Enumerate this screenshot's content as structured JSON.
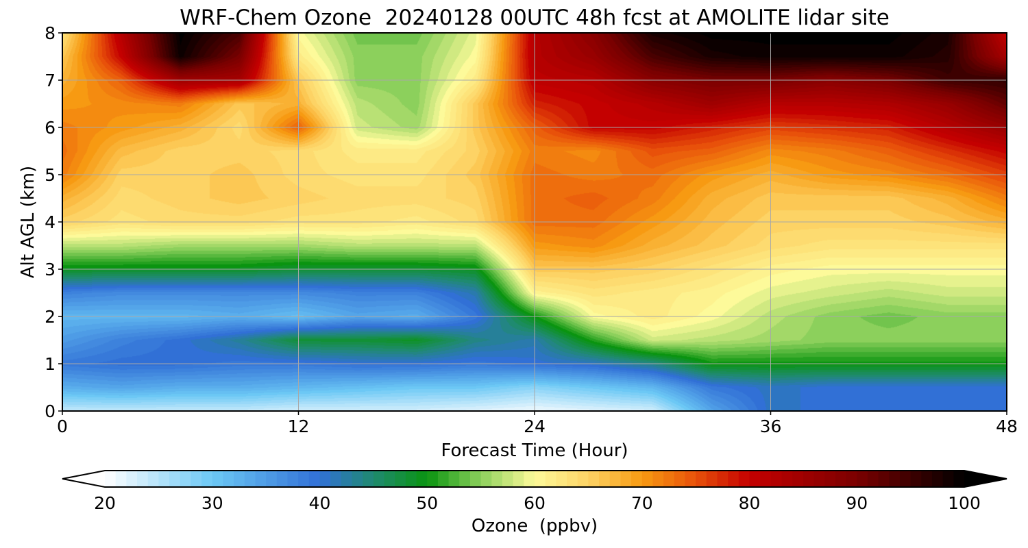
{
  "chart_data": {
    "type": "heatmap",
    "title": "WRF-Chem Ozone  20240128 00UTC 48h fcst at AMOLITE lidar site",
    "xlabel": "Forecast Time (Hour)",
    "ylabel": "Alt AGL (km)",
    "xlim": [
      0,
      48
    ],
    "ylim": [
      0,
      8
    ],
    "xticks": [
      0,
      12,
      24,
      36,
      48
    ],
    "yticks": [
      0,
      1,
      2,
      3,
      4,
      5,
      6,
      7,
      8
    ],
    "grid": true,
    "colorbar": {
      "label": "Ozone  (ppbv)",
      "orientation": "horizontal",
      "position": "bottom",
      "range": [
        20,
        100
      ],
      "ticks": [
        20,
        30,
        40,
        50,
        60,
        70,
        80,
        90,
        100
      ],
      "extend": "both",
      "colors": [
        {
          "v": 20,
          "c": "#ffffff"
        },
        {
          "v": 30,
          "c": "#6cc8f5"
        },
        {
          "v": 40,
          "c": "#3170d6"
        },
        {
          "v": 45,
          "c": "#1f8a70"
        },
        {
          "v": 50,
          "c": "#0a9410"
        },
        {
          "v": 55,
          "c": "#8cd05c"
        },
        {
          "v": 60,
          "c": "#fdfa9a"
        },
        {
          "v": 65,
          "c": "#fdd365"
        },
        {
          "v": 70,
          "c": "#f79a12"
        },
        {
          "v": 75,
          "c": "#e8510a"
        },
        {
          "v": 80,
          "c": "#c40000"
        },
        {
          "v": 90,
          "c": "#7a0000"
        },
        {
          "v": 100,
          "c": "#000000"
        }
      ]
    },
    "x": [
      0,
      3,
      6,
      9,
      12,
      15,
      18,
      21,
      24,
      27,
      30,
      33,
      36,
      39,
      42,
      45,
      48
    ],
    "y": [
      0,
      0.5,
      1,
      1.5,
      2,
      2.5,
      3,
      3.5,
      4,
      4.5,
      5,
      5.5,
      6,
      6.5,
      7,
      7.5,
      8
    ],
    "z": [
      [
        24,
        24,
        24,
        24,
        23,
        23,
        23,
        22,
        21,
        22,
        23,
        34,
        41,
        40,
        40,
        40,
        40
      ],
      [
        33,
        34,
        33,
        33,
        32,
        31,
        30,
        30,
        28,
        30,
        32,
        39,
        41,
        40,
        40,
        40,
        40
      ],
      [
        39,
        40,
        40,
        39,
        39,
        40,
        40,
        39,
        40,
        41,
        44,
        50,
        50,
        50,
        50,
        50,
        50
      ],
      [
        35,
        38,
        40,
        43,
        48,
        48,
        49,
        44,
        42,
        51,
        58,
        57,
        56,
        55,
        55,
        55,
        55
      ],
      [
        32,
        32,
        32,
        33,
        31,
        34,
        33,
        39,
        50,
        60,
        62,
        60,
        57,
        55,
        54,
        55,
        55
      ],
      [
        38,
        37,
        37,
        37,
        37,
        38,
        38,
        42,
        61,
        63,
        62,
        61,
        59,
        58,
        57,
        58,
        58
      ],
      [
        49,
        49,
        49,
        49,
        48,
        48,
        48,
        49,
        66,
        66,
        65,
        63,
        61,
        60,
        60,
        60,
        60
      ],
      [
        57,
        57,
        56,
        56,
        56,
        57,
        57,
        57,
        70,
        71,
        68,
        66,
        64,
        63,
        63,
        63,
        63
      ],
      [
        65,
        63,
        64,
        64,
        63,
        63,
        62,
        64,
        73,
        73,
        70,
        67,
        65,
        65,
        65,
        66,
        68
      ],
      [
        68,
        64,
        65,
        66,
        65,
        64,
        64,
        65,
        73,
        74,
        72,
        68,
        66,
        66,
        66,
        68,
        72
      ],
      [
        72,
        65,
        65,
        66,
        64,
        63,
        63,
        66,
        73,
        72,
        73,
        70,
        68,
        70,
        71,
        73,
        76
      ],
      [
        73,
        67,
        65,
        65,
        64,
        62,
        62,
        65,
        72,
        71,
        75,
        74,
        71,
        72,
        74,
        77,
        80
      ],
      [
        72,
        70,
        68,
        64,
        74,
        58,
        56,
        66,
        74,
        80,
        80,
        78,
        76,
        77,
        78,
        82,
        86
      ],
      [
        70,
        71,
        72,
        66,
        68,
        57,
        55,
        66,
        78,
        80,
        82,
        85,
        82,
        82,
        83,
        86,
        92
      ],
      [
        68,
        74,
        85,
        84,
        66,
        55,
        55,
        62,
        81,
        82,
        88,
        90,
        90,
        88,
        90,
        95,
        96
      ],
      [
        66,
        80,
        99,
        90,
        62,
        55,
        55,
        60,
        82,
        86,
        94,
        98,
        99,
        99,
        99,
        97,
        84
      ],
      [
        63,
        82,
        100,
        94,
        60,
        54,
        54,
        59,
        82,
        88,
        98,
        100,
        100,
        100,
        100,
        98,
        80
      ]
    ]
  }
}
